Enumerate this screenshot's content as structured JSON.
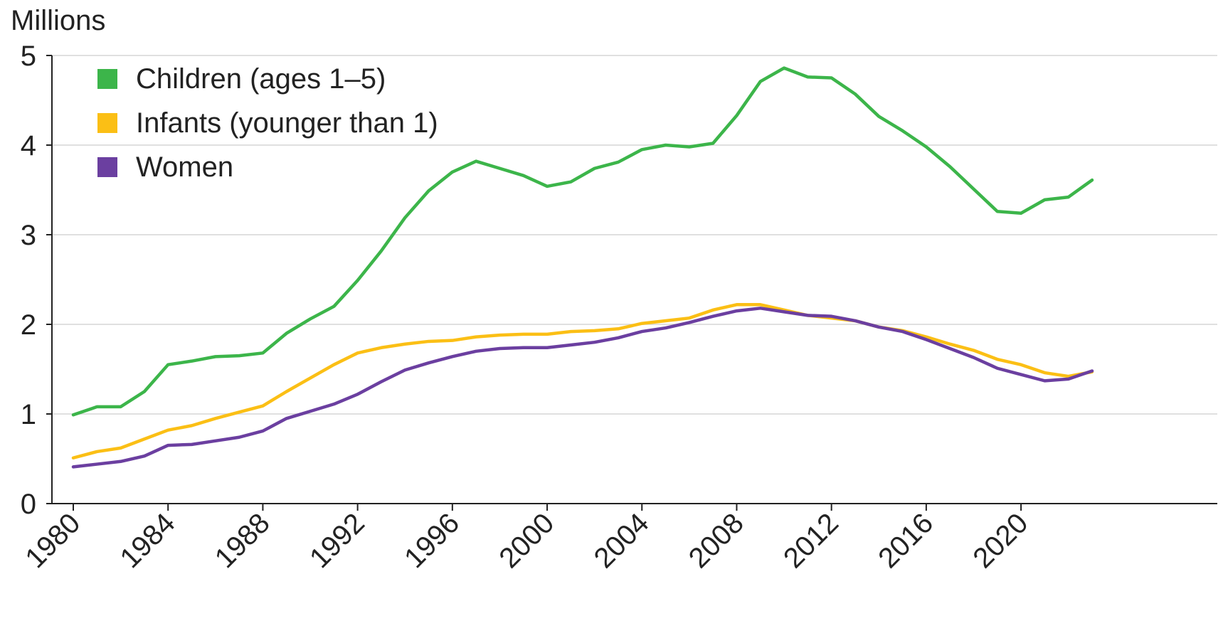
{
  "chart_data": {
    "type": "line",
    "unit_label": "Millions",
    "x": [
      1980,
      1981,
      1982,
      1983,
      1984,
      1985,
      1986,
      1987,
      1988,
      1989,
      1990,
      1991,
      1992,
      1993,
      1994,
      1995,
      1996,
      1997,
      1998,
      1999,
      2000,
      2001,
      2002,
      2003,
      2004,
      2005,
      2006,
      2007,
      2008,
      2009,
      2010,
      2011,
      2012,
      2013,
      2014,
      2015,
      2016,
      2017,
      2018,
      2019,
      2020,
      2021,
      2022,
      2023
    ],
    "xticks": [
      "1980",
      "1984",
      "1988",
      "1992",
      "1996",
      "2000",
      "2004",
      "2008",
      "2012",
      "2016",
      "2020"
    ],
    "yticks": [
      "0",
      "1",
      "2",
      "3",
      "4",
      "5"
    ],
    "ylim": [
      0,
      5
    ],
    "grid": true,
    "legend_position": "top-left",
    "series": [
      {
        "name": "Children (ages 1–5)",
        "color": "#3cb54a",
        "values": [
          0.99,
          1.08,
          1.08,
          1.25,
          1.55,
          1.59,
          1.64,
          1.65,
          1.68,
          1.9,
          2.06,
          2.2,
          2.49,
          2.82,
          3.19,
          3.49,
          3.7,
          3.82,
          3.74,
          3.66,
          3.54,
          3.59,
          3.74,
          3.81,
          3.95,
          4.0,
          3.98,
          4.02,
          4.33,
          4.71,
          4.86,
          4.76,
          4.75,
          4.57,
          4.32,
          4.16,
          3.98,
          3.76,
          3.51,
          3.26,
          3.24,
          3.39,
          3.42,
          3.61
        ]
      },
      {
        "name": "Infants (younger than 1)",
        "color": "#fbbf15",
        "values": [
          0.51,
          0.58,
          0.62,
          0.72,
          0.82,
          0.87,
          0.95,
          1.02,
          1.09,
          1.25,
          1.4,
          1.55,
          1.68,
          1.74,
          1.78,
          1.81,
          1.82,
          1.86,
          1.88,
          1.89,
          1.89,
          1.92,
          1.93,
          1.95,
          2.01,
          2.04,
          2.07,
          2.16,
          2.22,
          2.22,
          2.16,
          2.1,
          2.07,
          2.04,
          1.97,
          1.93,
          1.86,
          1.78,
          1.71,
          1.61,
          1.55,
          1.46,
          1.42,
          1.47
        ]
      },
      {
        "name": "Women",
        "color": "#6b3fa0",
        "values": [
          0.41,
          0.44,
          0.47,
          0.53,
          0.65,
          0.66,
          0.7,
          0.74,
          0.81,
          0.95,
          1.03,
          1.11,
          1.22,
          1.36,
          1.49,
          1.57,
          1.64,
          1.7,
          1.73,
          1.74,
          1.74,
          1.77,
          1.8,
          1.85,
          1.92,
          1.96,
          2.02,
          2.09,
          2.15,
          2.18,
          2.14,
          2.1,
          2.09,
          2.04,
          1.97,
          1.92,
          1.83,
          1.73,
          1.63,
          1.51,
          1.44,
          1.37,
          1.39,
          1.48
        ]
      }
    ]
  }
}
